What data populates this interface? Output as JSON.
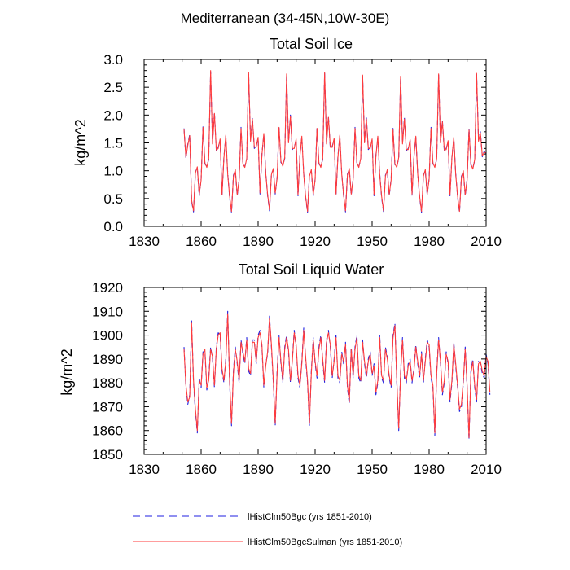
{
  "page_title": "Mediterranean (34-45N,10W-30E)",
  "colors": {
    "series_blue": "#1f1fe0",
    "series_red": "#ff3b3b"
  },
  "legend": {
    "items": [
      {
        "label": "lHistClm50Bgc (yrs 1851-2010)",
        "color": "#1f1fe0",
        "style": "dashed"
      },
      {
        "label": "lHistClm50BgcSulman (yrs 1851-2010)",
        "color": "#ff3b3b",
        "style": "solid"
      }
    ]
  },
  "chart_data": [
    {
      "type": "line",
      "title": "Total Soil Ice",
      "xlabel": "",
      "ylabel": "kg/m^2",
      "xlim": [
        1830,
        2010
      ],
      "ylim": [
        0.0,
        3.0
      ],
      "xticks": [
        1830,
        1860,
        1890,
        1920,
        1950,
        1980,
        2010
      ],
      "yticks": [
        "0.0",
        "0.5",
        "1.0",
        "1.5",
        "2.0",
        "2.5",
        "3.0"
      ],
      "x_start": 1851,
      "series": [
        {
          "name": "lHistClm50Bgc (yrs 1851-2010)",
          "values": [
            1.76,
            1.22,
            1.48,
            1.65,
            0.45,
            0.26,
            0.98,
            1.05,
            0.55,
            0.85,
            1.8,
            1.12,
            1.08,
            1.2,
            2.78,
            1.5,
            2.05,
            1.35,
            1.42,
            1.55,
            0.55,
            1.25,
            1.62,
            0.95,
            0.52,
            0.25,
            0.92,
            1.0,
            0.55,
            0.85,
            1.78,
            1.1,
            1.08,
            1.2,
            2.75,
            1.55,
            1.95,
            1.4,
            1.45,
            1.58,
            0.58,
            1.3,
            1.65,
            0.98,
            0.55,
            0.28,
            0.95,
            1.02,
            0.58,
            0.88,
            1.8,
            1.15,
            1.1,
            1.22,
            2.72,
            1.52,
            2.0,
            1.38,
            1.42,
            1.55,
            0.55,
            1.28,
            1.6,
            0.95,
            0.52,
            0.25,
            0.92,
            1.0,
            0.55,
            0.85,
            1.78,
            1.12,
            1.08,
            1.2,
            2.75,
            1.5,
            1.98,
            1.4,
            1.44,
            1.56,
            0.56,
            1.26,
            1.62,
            0.96,
            0.54,
            0.26,
            0.94,
            1.02,
            0.56,
            0.86,
            1.78,
            1.12,
            1.08,
            1.2,
            2.7,
            1.52,
            1.95,
            1.38,
            1.42,
            1.55,
            0.55,
            1.28,
            1.6,
            0.95,
            0.52,
            0.26,
            0.92,
            1.0,
            0.55,
            0.85,
            1.76,
            1.1,
            1.08,
            1.22,
            2.68,
            1.5,
            1.95,
            1.36,
            1.4,
            1.54,
            0.56,
            1.26,
            1.6,
            0.96,
            0.52,
            0.25,
            0.92,
            1.0,
            0.56,
            0.86,
            1.78,
            1.12,
            1.08,
            1.2,
            2.72,
            1.52,
            1.9,
            1.35,
            1.4,
            1.52,
            0.55,
            1.25,
            1.58,
            0.95,
            0.52,
            0.25,
            0.9,
            0.98,
            0.55,
            0.85,
            1.75,
            1.1,
            1.05,
            1.18,
            2.73,
            1.55,
            1.7,
            1.25,
            1.35,
            1.3
          ]
        },
        {
          "name": "lHistClm50BgcSulman (yrs 1851-2010)",
          "values": [
            1.74,
            1.24,
            1.46,
            1.63,
            0.47,
            0.28,
            0.96,
            1.07,
            0.57,
            0.83,
            1.78,
            1.14,
            1.06,
            1.22,
            2.8,
            1.48,
            2.03,
            1.37,
            1.4,
            1.57,
            0.57,
            1.23,
            1.64,
            0.93,
            0.54,
            0.27,
            0.9,
            1.02,
            0.57,
            0.83,
            1.76,
            1.12,
            1.06,
            1.22,
            2.77,
            1.53,
            1.93,
            1.42,
            1.43,
            1.6,
            0.6,
            1.28,
            1.67,
            0.96,
            0.57,
            0.3,
            0.93,
            1.04,
            0.6,
            0.86,
            1.78,
            1.17,
            1.08,
            1.24,
            2.74,
            1.5,
            1.98,
            1.4,
            1.4,
            1.57,
            0.57,
            1.26,
            1.62,
            0.93,
            0.54,
            0.27,
            0.9,
            1.02,
            0.57,
            0.83,
            1.76,
            1.14,
            1.06,
            1.22,
            2.77,
            1.48,
            1.96,
            1.42,
            1.42,
            1.58,
            0.58,
            1.24,
            1.64,
            0.94,
            0.56,
            0.28,
            0.92,
            1.04,
            0.58,
            0.84,
            1.76,
            1.14,
            1.06,
            1.22,
            2.72,
            1.5,
            1.93,
            1.4,
            1.4,
            1.57,
            0.57,
            1.26,
            1.62,
            0.93,
            0.54,
            0.28,
            0.9,
            1.02,
            0.57,
            0.83,
            1.74,
            1.12,
            1.06,
            1.24,
            2.7,
            1.48,
            1.93,
            1.38,
            1.38,
            1.56,
            0.58,
            1.24,
            1.62,
            0.94,
            0.54,
            0.27,
            0.9,
            1.02,
            0.58,
            0.84,
            1.76,
            1.14,
            1.06,
            1.22,
            2.74,
            1.5,
            1.88,
            1.37,
            1.38,
            1.54,
            0.57,
            1.23,
            1.6,
            0.93,
            0.54,
            0.27,
            0.88,
            1.0,
            0.57,
            0.83,
            1.73,
            1.12,
            1.03,
            1.2,
            2.75,
            1.53,
            1.68,
            1.27,
            1.33,
            1.32
          ]
        }
      ]
    },
    {
      "type": "line",
      "title": "Total Soil Liquid Water",
      "xlabel": "",
      "ylabel": "kg/m^2",
      "xlim": [
        1830,
        2010
      ],
      "ylim": [
        1850,
        1920
      ],
      "xticks": [
        1830,
        1860,
        1890,
        1920,
        1950,
        1980,
        2010
      ],
      "yticks": [
        "1850",
        "1860",
        "1870",
        "1880",
        "1890",
        "1900",
        "1910",
        "1920"
      ],
      "x_start": 1851,
      "series": [
        {
          "name": "lHistClm50Bgc (yrs 1851-2010)",
          "values": [
            1895,
            1878,
            1871,
            1875,
            1906,
            1880,
            1868,
            1859,
            1882,
            1878,
            1893,
            1893,
            1877,
            1882,
            1895,
            1890,
            1878,
            1895,
            1901,
            1900,
            1885,
            1880,
            1890,
            1910,
            1880,
            1862,
            1885,
            1895,
            1888,
            1880,
            1898,
            1892,
            1888,
            1899,
            1885,
            1883,
            1898,
            1898,
            1888,
            1900,
            1902,
            1895,
            1878,
            1888,
            1892,
            1908,
            1895,
            1880,
            1862,
            1885,
            1900,
            1888,
            1880,
            1895,
            1900,
            1893,
            1880,
            1890,
            1902,
            1895,
            1882,
            1878,
            1889,
            1903,
            1890,
            1880,
            1862,
            1885,
            1899,
            1888,
            1882,
            1895,
            1900,
            1889,
            1880,
            1898,
            1902,
            1895,
            1882,
            1890,
            1900,
            1882,
            1880,
            1893,
            1888,
            1897,
            1878,
            1871,
            1895,
            1882,
            1895,
            1900,
            1882,
            1880,
            1898,
            1888,
            1882,
            1890,
            1893,
            1883,
            1888,
            1875,
            1880,
            1900,
            1882,
            1880,
            1895,
            1891,
            1882,
            1878,
            1900,
            1905,
            1880,
            1860,
            1885,
            1899,
            1882,
            1880,
            1888,
            1890,
            1880,
            1886,
            1896,
            1888,
            1882,
            1893,
            1880,
            1890,
            1898,
            1895,
            1882,
            1878,
            1858,
            1885,
            1899,
            1888,
            1875,
            1880,
            1893,
            1888,
            1872,
            1880,
            1897,
            1887,
            1878,
            1868,
            1870,
            1880,
            1895,
            1878,
            1856,
            1885,
            1890,
            1878,
            1872,
            1889,
            1888,
            1884,
            1882,
            1892,
            1888,
            1875
          ]
        },
        {
          "name": "lHistClm50BgcSulman (yrs 1851-2010)",
          "values": [
            1894,
            1879,
            1872,
            1874,
            1905,
            1881,
            1869,
            1860,
            1881,
            1879,
            1892,
            1894,
            1878,
            1881,
            1894,
            1891,
            1879,
            1894,
            1900,
            1901,
            1886,
            1881,
            1889,
            1909,
            1881,
            1863,
            1884,
            1894,
            1889,
            1881,
            1897,
            1893,
            1889,
            1898,
            1886,
            1884,
            1897,
            1897,
            1889,
            1899,
            1901,
            1896,
            1879,
            1887,
            1893,
            1907,
            1896,
            1881,
            1863,
            1884,
            1899,
            1889,
            1881,
            1894,
            1899,
            1894,
            1881,
            1889,
            1901,
            1896,
            1883,
            1879,
            1888,
            1902,
            1891,
            1881,
            1863,
            1884,
            1898,
            1889,
            1883,
            1894,
            1899,
            1890,
            1881,
            1897,
            1901,
            1896,
            1883,
            1889,
            1899,
            1883,
            1881,
            1892,
            1889,
            1896,
            1879,
            1872,
            1894,
            1883,
            1894,
            1899,
            1883,
            1881,
            1897,
            1889,
            1883,
            1889,
            1892,
            1884,
            1887,
            1876,
            1881,
            1899,
            1883,
            1881,
            1894,
            1890,
            1883,
            1879,
            1899,
            1904,
            1881,
            1861,
            1884,
            1898,
            1883,
            1881,
            1887,
            1889,
            1881,
            1885,
            1895,
            1889,
            1883,
            1892,
            1881,
            1889,
            1897,
            1896,
            1883,
            1879,
            1859,
            1884,
            1898,
            1889,
            1876,
            1881,
            1892,
            1889,
            1873,
            1881,
            1896,
            1888,
            1879,
            1869,
            1871,
            1881,
            1894,
            1879,
            1857,
            1884,
            1889,
            1879,
            1873,
            1888,
            1889,
            1885,
            1883,
            1891,
            1889,
            1876
          ]
        }
      ]
    }
  ]
}
